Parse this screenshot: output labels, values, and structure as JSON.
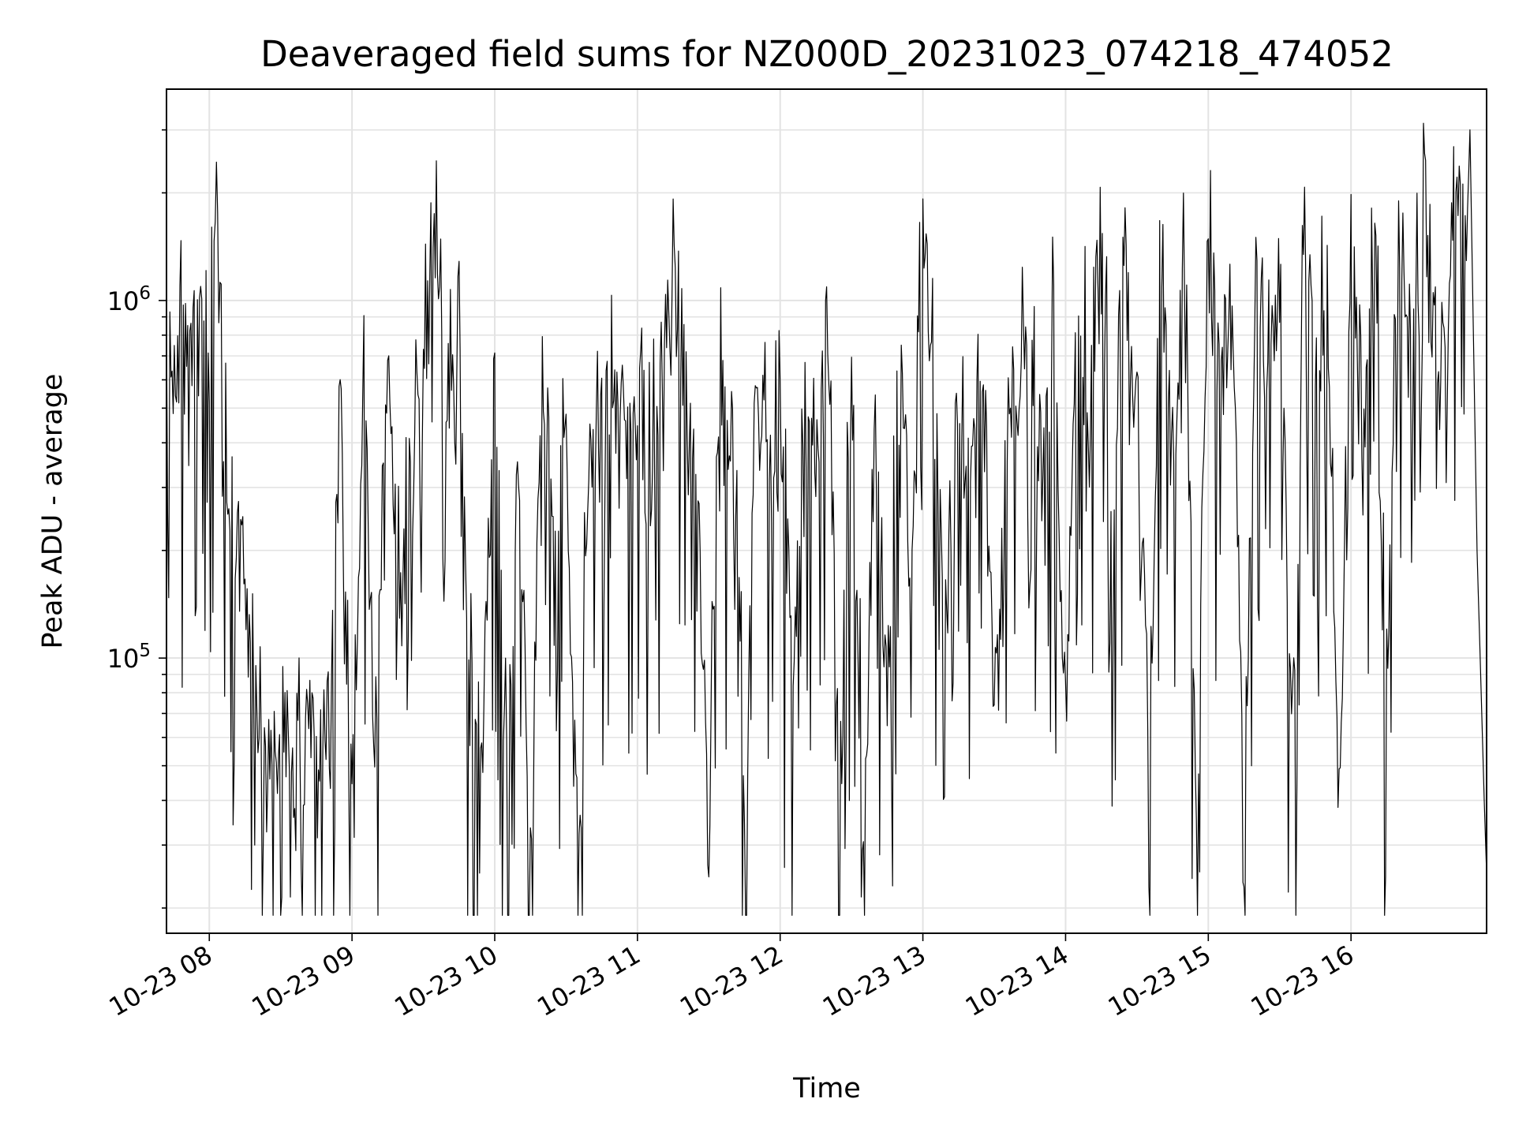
{
  "chart_data": {
    "type": "line",
    "title": "Deaveraged field sums for NZ000D_20231023_074218_474052",
    "xlabel": "Time",
    "ylabel": "Peak ADU - average",
    "yscale": "log",
    "ylim": [
      17000,
      3900000
    ],
    "xlim": [
      "2023-10-23 07:42",
      "2023-10-23 16:57"
    ],
    "grid": true,
    "line_color": "#000000",
    "x_ticks": [
      "10-23 08",
      "10-23 09",
      "10-23 10",
      "10-23 11",
      "10-23 12",
      "10-23 13",
      "10-23 14",
      "10-23 15",
      "10-23 16"
    ],
    "y_ticks": [
      {
        "value": 100000,
        "label": "10^5"
      },
      {
        "value": 1000000,
        "label": "10^6"
      }
    ],
    "series": [
      {
        "values_description_note": null,
        "x": [
          "2023-10-23 07:42",
          "2023-10-23 07:50",
          "2023-10-23 07:55",
          "2023-10-23 08:00",
          "2023-10-23 08:03",
          "2023-10-23 08:06",
          "2023-10-23 08:10",
          "2023-10-23 08:15",
          "2023-10-23 08:20",
          "2023-10-23 08:25",
          "2023-10-23 08:30",
          "2023-10-23 08:35",
          "2023-10-23 08:40",
          "2023-10-23 08:45",
          "2023-10-23 08:50",
          "2023-10-23 08:55",
          "2023-10-23 09:00",
          "2023-10-23 09:05",
          "2023-10-23 09:10",
          "2023-10-23 09:15",
          "2023-10-23 09:20",
          "2023-10-23 09:25",
          "2023-10-23 09:30",
          "2023-10-23 09:35",
          "2023-10-23 09:40",
          "2023-10-23 09:45",
          "2023-10-23 09:50",
          "2023-10-23 09:55",
          "2023-10-23 10:00",
          "2023-10-23 10:05",
          "2023-10-23 10:10",
          "2023-10-23 10:15",
          "2023-10-23 10:20",
          "2023-10-23 10:25",
          "2023-10-23 10:30",
          "2023-10-23 10:35",
          "2023-10-23 10:40",
          "2023-10-23 10:45",
          "2023-10-23 10:50",
          "2023-10-23 10:55",
          "2023-10-23 11:00",
          "2023-10-23 11:05",
          "2023-10-23 11:10",
          "2023-10-23 11:15",
          "2023-10-23 11:20",
          "2023-10-23 11:25",
          "2023-10-23 11:30",
          "2023-10-23 11:35",
          "2023-10-23 11:40",
          "2023-10-23 11:45",
          "2023-10-23 11:50",
          "2023-10-23 11:55",
          "2023-10-23 12:00",
          "2023-10-23 12:05",
          "2023-10-23 12:10",
          "2023-10-23 12:15",
          "2023-10-23 12:20",
          "2023-10-23 12:25",
          "2023-10-23 12:30",
          "2023-10-23 12:35",
          "2023-10-23 12:40",
          "2023-10-23 12:45",
          "2023-10-23 12:50",
          "2023-10-23 12:55",
          "2023-10-23 13:00",
          "2023-10-23 13:05",
          "2023-10-23 13:10",
          "2023-10-23 13:15",
          "2023-10-23 13:20",
          "2023-10-23 13:25",
          "2023-10-23 13:30",
          "2023-10-23 13:35",
          "2023-10-23 13:40",
          "2023-10-23 13:45",
          "2023-10-23 13:50",
          "2023-10-23 13:55",
          "2023-10-23 14:00",
          "2023-10-23 14:05",
          "2023-10-23 14:10",
          "2023-10-23 14:15",
          "2023-10-23 14:20",
          "2023-10-23 14:25",
          "2023-10-23 14:30",
          "2023-10-23 14:35",
          "2023-10-23 14:40",
          "2023-10-23 14:45",
          "2023-10-23 14:50",
          "2023-10-23 14:55",
          "2023-10-23 15:00",
          "2023-10-23 15:05",
          "2023-10-23 15:10",
          "2023-10-23 15:15",
          "2023-10-23 15:20",
          "2023-10-23 15:25",
          "2023-10-23 15:30",
          "2023-10-23 15:35",
          "2023-10-23 15:40",
          "2023-10-23 15:45",
          "2023-10-23 15:50",
          "2023-10-23 15:55",
          "2023-10-23 16:00",
          "2023-10-23 16:05",
          "2023-10-23 16:10",
          "2023-10-23 16:15",
          "2023-10-23 16:20",
          "2023-10-23 16:25",
          "2023-10-23 16:30",
          "2023-10-23 16:35",
          "2023-10-23 16:40",
          "2023-10-23 16:45",
          "2023-10-23 16:48",
          "2023-10-23 16:50",
          "2023-10-23 16:53",
          "2023-10-23 16:56",
          "2023-10-23 16:57"
        ],
        "y": [
          600000,
          800000,
          750000,
          850000,
          1700000,
          400000,
          250000,
          130000,
          60000,
          40000,
          90000,
          50000,
          80000,
          45000,
          70000,
          500000,
          35000,
          700000,
          50000,
          900000,
          120000,
          400000,
          600000,
          1300000,
          500000,
          900000,
          70000,
          60000,
          500000,
          40000,
          300000,
          25000,
          600000,
          200000,
          400000,
          22000,
          500000,
          300000,
          600000,
          400000,
          500000,
          300000,
          600000,
          1000000,
          700000,
          300000,
          30000,
          500000,
          350000,
          50000,
          600000,
          300000,
          400000,
          100000,
          500000,
          300000,
          800000,
          40000,
          600000,
          30000,
          500000,
          70000,
          800000,
          100000,
          1900000,
          500000,
          150000,
          600000,
          300000,
          800000,
          50000,
          400000,
          600000,
          1000000,
          300000,
          800000,
          60000,
          1200000,
          500000,
          1600000,
          200000,
          1300000,
          500000,
          60000,
          1500000,
          300000,
          1200000,
          40000,
          1400000,
          600000,
          1000000,
          30000,
          1500000,
          600000,
          1200000,
          50000,
          1500000,
          700000,
          1000000,
          40000,
          1400000,
          300000,
          1400000,
          80000,
          1400000,
          600000,
          1500000,
          800000,
          600000,
          2500000,
          1200000,
          3000000,
          200000,
          40000,
          25000
        ],
        "line_width_note": null
      }
    ]
  }
}
